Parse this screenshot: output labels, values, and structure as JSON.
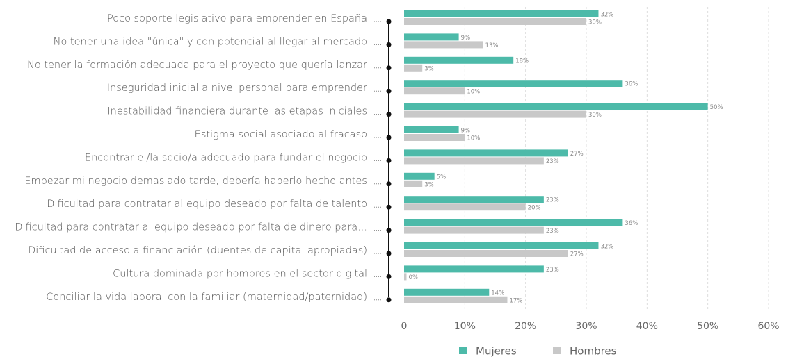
{
  "chart_data": {
    "type": "bar",
    "orientation": "horizontal",
    "categories": [
      "Poco soporte legislativo para emprender en España",
      "No tener una idea \"única\" y con potencial al llegar al mercado",
      "No tener la formación adecuada para el proyecto que quería lanzar",
      "Inseguridad inicial a nivel personal para emprender",
      "Inestabilidad financiera durante las etapas iniciales",
      "Estigma social asociado al  fracaso",
      "Encontrar el/la socio/a adecuado  para fundar el negocio",
      "Empezar mi negocio demasiado tarde, debería haberlo hecho antes",
      "Dificultad para contratar al equipo deseado por falta de talento",
      "Dificultad para contratar al equipo deseado por falta de dinero para...",
      "Dificultad de acceso a financiación (duentes de capital apropiadas)",
      "Cultura dominada por hombres en el sector digital",
      "Conciliar la vida laboral con la familiar (maternidad/paternidad)"
    ],
    "series": [
      {
        "name": "Mujeres",
        "color": "#4dbaa9",
        "values": [
          32,
          9,
          18,
          36,
          50,
          9,
          27,
          5,
          23,
          36,
          32,
          23,
          14
        ],
        "value_labels": [
          "32%",
          "9%",
          "18%",
          "36%",
          "50%",
          "9%",
          "27%",
          "5%",
          "23%",
          "36%",
          "32%",
          "23%",
          "14%"
        ]
      },
      {
        "name": "Hombres",
        "color": "#c8c8c8",
        "values": [
          30,
          13,
          3,
          10,
          30,
          10,
          23,
          3,
          20,
          23,
          27,
          0.4,
          17
        ],
        "value_labels": [
          "30%",
          "13%",
          "3%",
          "10%",
          "30%",
          "10%",
          "23%",
          "3%",
          "20%",
          "23%",
          "27%",
          "0%",
          "17%"
        ]
      }
    ],
    "xlim": [
      0,
      60
    ],
    "xticks": [
      0,
      {
        "value": 10,
        "label": "10%"
      },
      {
        "value": 20,
        "label": "20%"
      },
      {
        "value": 30,
        "label": "30%"
      },
      {
        "value": 40,
        "label": "40%"
      },
      {
        "value": 50,
        "label": "50%"
      },
      {
        "value": 60,
        "label": "60%"
      }
    ],
    "grid": true,
    "legend": "bottom"
  }
}
